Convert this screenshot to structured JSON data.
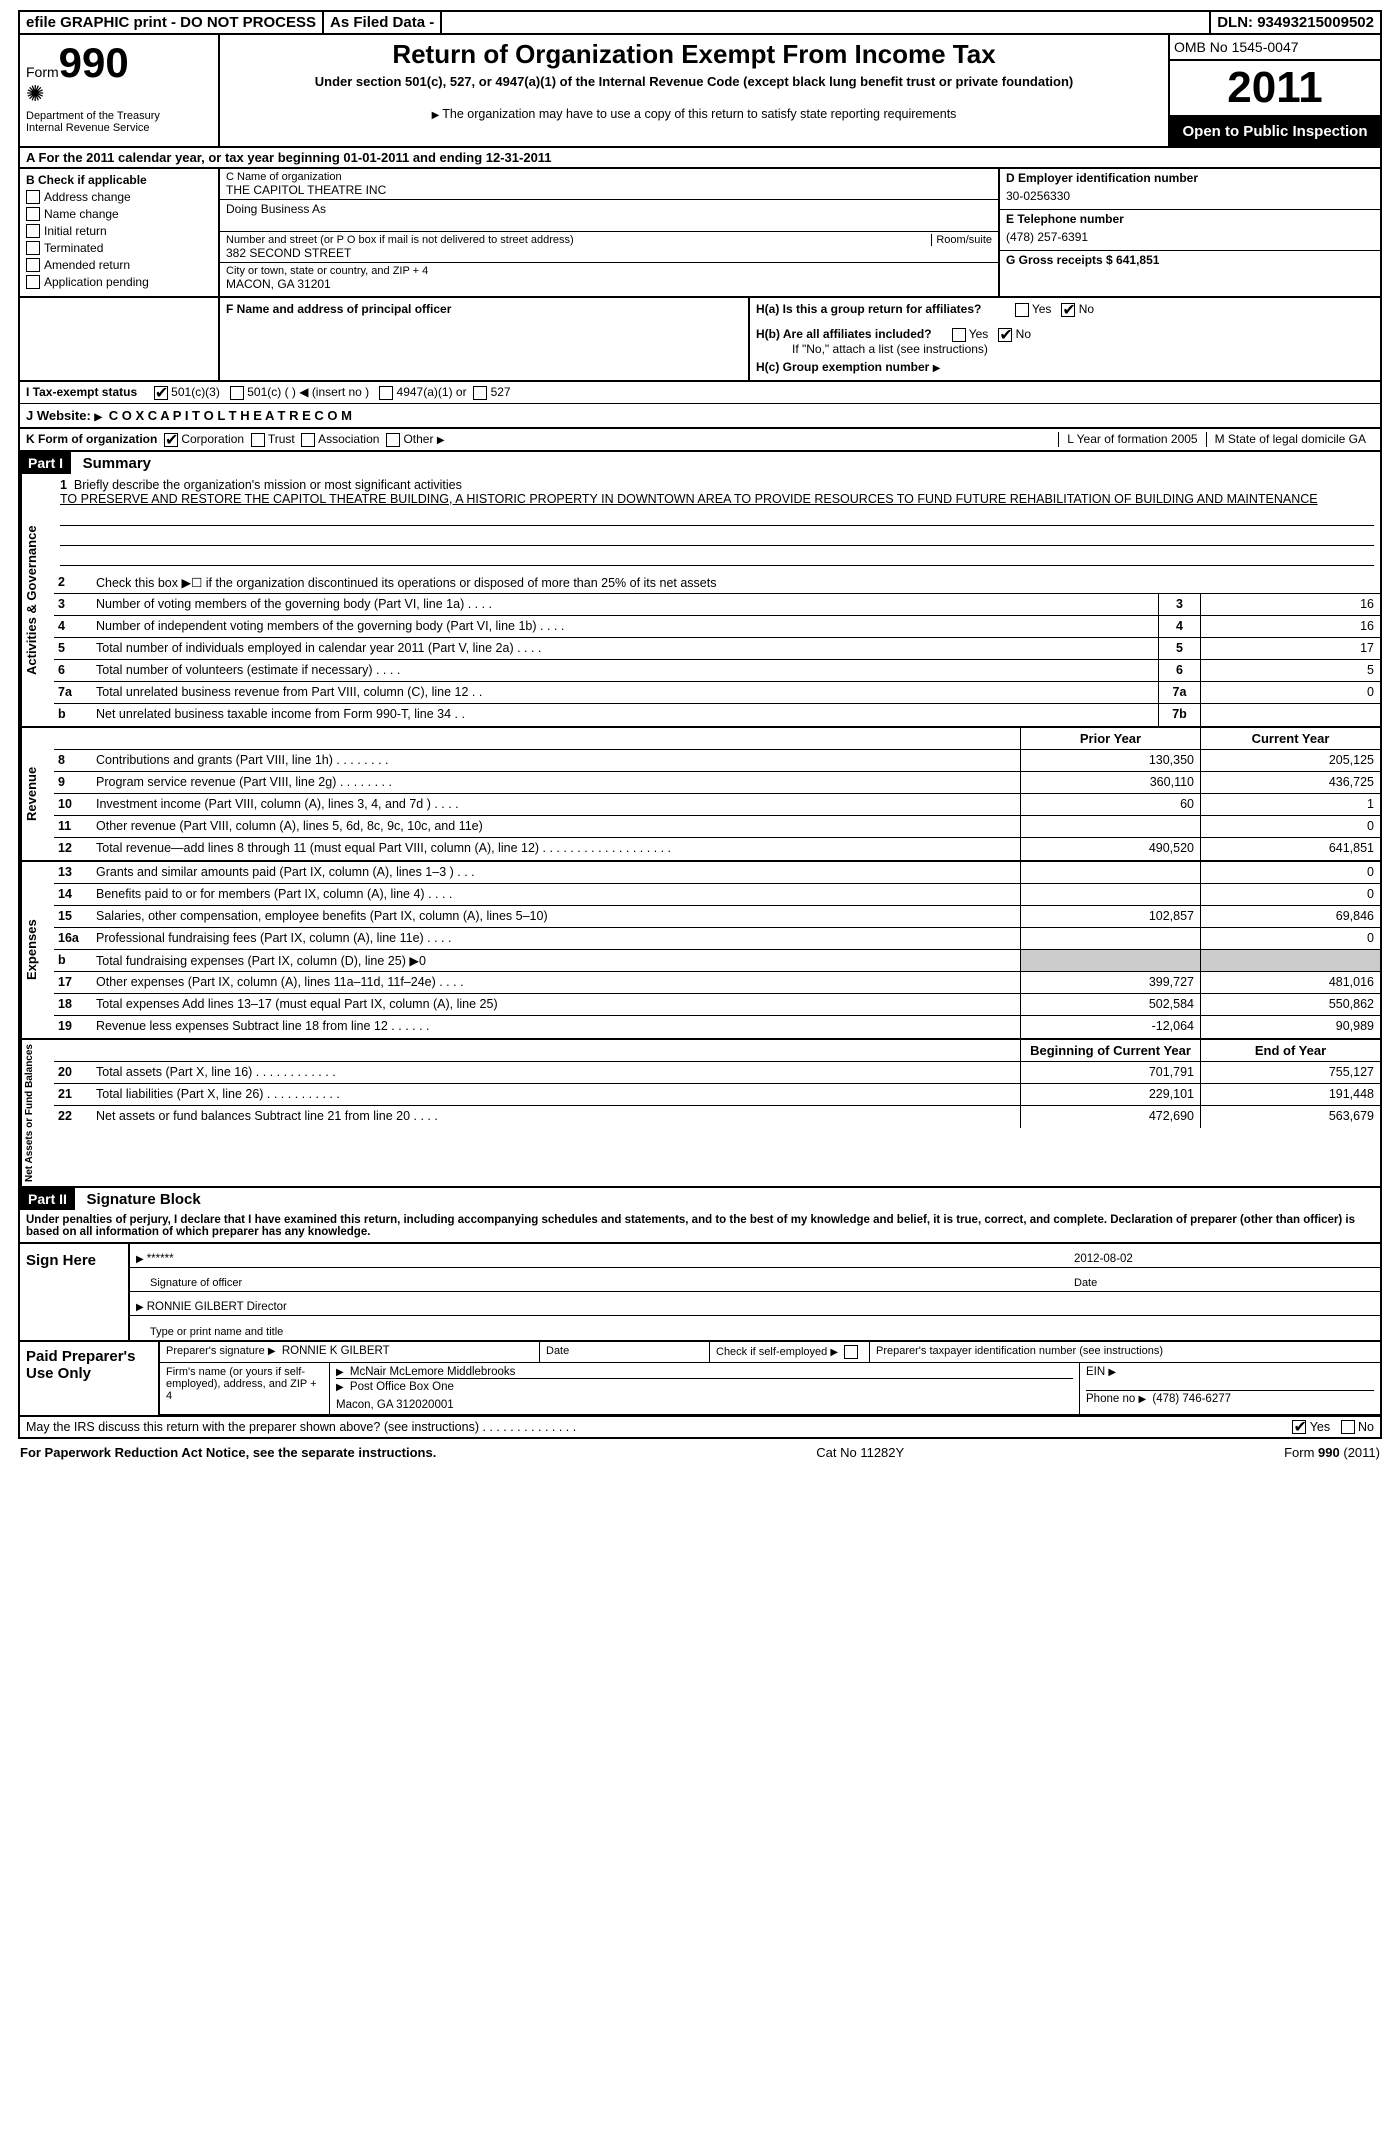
{
  "topbar": {
    "efile": "efile GRAPHIC print - DO NOT PROCESS",
    "asfiled": "As Filed Data -",
    "dln": "DLN: 93493215009502"
  },
  "header": {
    "form_label": "Form",
    "form_no": "990",
    "dept": "Department of the Treasury",
    "irs": "Internal Revenue Service",
    "title": "Return of Organization Exempt From Income Tax",
    "subtitle": "Under section 501(c), 527, or 4947(a)(1) of the Internal Revenue Code (except black lung benefit trust or private foundation)",
    "note": "The organization may have to use a copy of this return to satisfy state reporting requirements",
    "omb": "OMB No 1545-0047",
    "year": "2011",
    "open": "Open to Public Inspection"
  },
  "rowA": "A  For the 2011 calendar year, or tax year beginning 01-01-2011    and ending 12-31-2011",
  "colB": {
    "hdr": "B Check if applicable",
    "items": [
      "Address change",
      "Name change",
      "Initial return",
      "Terminated",
      "Amended return",
      "Application pending"
    ]
  },
  "colC": {
    "name_lbl": "C Name of organization",
    "name": "THE CAPITOL THEATRE INC",
    "dba_lbl": "Doing Business As",
    "street_lbl": "Number and street (or P O  box if mail is not delivered to street address)",
    "room_lbl": "Room/suite",
    "street": "382 SECOND STREET",
    "city_lbl": "City or town, state or country, and ZIP + 4",
    "city": "MACON, GA  31201",
    "f_lbl": "F   Name and address of principal officer"
  },
  "colD": {
    "d_lbl": "D Employer identification number",
    "d_val": "30-0256330",
    "e_lbl": "E Telephone number",
    "e_val": "(478) 257-6391",
    "g_lbl": "G Gross receipts $ 641,851"
  },
  "H": {
    "a": "H(a)  Is this a group return for affiliates?",
    "b": "H(b)  Are all affiliates included?",
    "b2": "If \"No,\" attach a list  (see instructions)",
    "c": "H(c)   Group exemption number",
    "yes": "Yes",
    "no": "No"
  },
  "rowI": {
    "lbl": "I   Tax-exempt status",
    "o1": "501(c)(3)",
    "o2": "501(c) (  )",
    "ins": "(insert no )",
    "o3": "4947(a)(1) or",
    "o4": "527"
  },
  "rowJ": {
    "lbl": "J   Website:",
    "val": "C O X C A P I T O L T H E A T R E  C O M"
  },
  "rowK": {
    "lbl": "K Form of organization",
    "o1": "Corporation",
    "o2": "Trust",
    "o3": "Association",
    "o4": "Other",
    "L": "L Year of formation  2005",
    "M": "M State of legal domicile  GA"
  },
  "part1": {
    "hdr": "Part I",
    "title": "Summary"
  },
  "gov": {
    "label": "Activities & Governance",
    "l1_lbl": "Briefly describe the organization's mission or most significant activities",
    "l1_txt": "TO PRESERVE AND RESTORE THE CAPITOL THEATRE BUILDING, A HISTORIC PROPERTY IN DOWNTOWN AREA  TO PROVIDE RESOURCES TO FUND FUTURE REHABILITATION OF BUILDING AND MAINTENANCE",
    "l2": "Check this box ▶☐ if the organization discontinued its operations or disposed of more than 25% of its net assets",
    "lines": [
      {
        "n": "3",
        "t": "Number of voting members of the governing body (Part VI, line 1a)  .  .  .  .",
        "b": "3",
        "v": "16"
      },
      {
        "n": "4",
        "t": "Number of independent voting members of the governing body (Part VI, line 1b)  .  .  .  .",
        "b": "4",
        "v": "16"
      },
      {
        "n": "5",
        "t": "Total number of individuals employed in calendar year 2011 (Part V, line 2a)  .  .  .  .",
        "b": "5",
        "v": "17"
      },
      {
        "n": "6",
        "t": "Total number of volunteers (estimate if necessary)  .  .  .  .",
        "b": "6",
        "v": "5"
      },
      {
        "n": "7a",
        "t": "Total unrelated business revenue from Part VIII, column (C), line 12  .  .",
        "b": "7a",
        "v": "0"
      },
      {
        "n": "b",
        "t": "Net unrelated business taxable income from Form 990-T, line 34  .  .",
        "b": "7b",
        "v": ""
      }
    ]
  },
  "rev": {
    "label": "Revenue",
    "hdr_prior": "Prior Year",
    "hdr_curr": "Current Year",
    "lines": [
      {
        "n": "8",
        "t": "Contributions and grants (Part VIII, line 1h)  .  .  .  .  .  .  .  .",
        "p": "130,350",
        "c": "205,125"
      },
      {
        "n": "9",
        "t": "Program service revenue (Part VIII, line 2g)  .  .  .  .  .  .  .  .",
        "p": "360,110",
        "c": "436,725"
      },
      {
        "n": "10",
        "t": "Investment income (Part VIII, column (A), lines 3, 4, and 7d )  .  .  .  .",
        "p": "60",
        "c": "1"
      },
      {
        "n": "11",
        "t": "Other revenue (Part VIII, column (A), lines 5, 6d, 8c, 9c, 10c, and 11e)",
        "p": "",
        "c": "0"
      },
      {
        "n": "12",
        "t": "Total revenue—add lines 8 through 11 (must equal Part VIII, column (A), line 12) .  .  .  .  .  .  .  .  .  .  .  .  .  .  .  .  .  .  .",
        "p": "490,520",
        "c": "641,851"
      }
    ]
  },
  "exp": {
    "label": "Expenses",
    "lines": [
      {
        "n": "13",
        "t": "Grants and similar amounts paid (Part IX, column (A), lines 1–3 )  .  .  .",
        "p": "",
        "c": "0"
      },
      {
        "n": "14",
        "t": "Benefits paid to or for members (Part IX, column (A), line 4)  .  .  .  .",
        "p": "",
        "c": "0"
      },
      {
        "n": "15",
        "t": "Salaries, other compensation, employee benefits (Part IX, column (A), lines 5–10)",
        "p": "102,857",
        "c": "69,846"
      },
      {
        "n": "16a",
        "t": "Professional fundraising fees (Part IX, column (A), line 11e)  .  .  .  .",
        "p": "",
        "c": "0"
      },
      {
        "n": "b",
        "t": "Total fundraising expenses (Part IX, column (D), line 25)  ▶0",
        "p": "shade",
        "c": "shade"
      },
      {
        "n": "17",
        "t": "Other expenses (Part IX, column (A), lines 11a–11d, 11f–24e)  .  .  .  .",
        "p": "399,727",
        "c": "481,016"
      },
      {
        "n": "18",
        "t": "Total expenses  Add lines 13–17 (must equal Part IX, column (A), line 25)",
        "p": "502,584",
        "c": "550,862"
      },
      {
        "n": "19",
        "t": "Revenue less expenses  Subtract line 18 from line 12  .  .  .  .  .  .",
        "p": "-12,064",
        "c": "90,989"
      }
    ]
  },
  "net": {
    "label": "Net Assets or Fund Balances",
    "hdr_beg": "Beginning of Current Year",
    "hdr_end": "End of Year",
    "lines": [
      {
        "n": "20",
        "t": "Total assets (Part X, line 16)  .  .  .  .  .  .  .  .  .  .  .  .",
        "p": "701,791",
        "c": "755,127"
      },
      {
        "n": "21",
        "t": "Total liabilities (Part X, line 26)  .  .  .  .  .  .  .  .  .  .  .",
        "p": "229,101",
        "c": "191,448"
      },
      {
        "n": "22",
        "t": "Net assets or fund balances  Subtract line 21 from line 20  .  .  .  .",
        "p": "472,690",
        "c": "563,679"
      }
    ]
  },
  "part2": {
    "hdr": "Part II",
    "title": "Signature Block"
  },
  "sig": {
    "perjury": "Under penalties of perjury, I declare that I have examined this return, including accompanying schedules and statements, and to the best of my knowledge and belief, it is true, correct, and complete. Declaration of preparer (other than officer) is based on all information of which preparer has any knowledge.",
    "signhere": "Sign Here",
    "stars": "******",
    "date": "2012-08-02",
    "sig_lbl": "Signature of officer",
    "date_lbl": "Date",
    "name": "RONNIE GILBERT Director",
    "name_lbl": "Type or print name and title",
    "paid": "Paid Preparer's Use Only",
    "prep_sig_lbl": "Preparer's signature",
    "prep_name": "RONNIE K GILBERT",
    "date2_lbl": "Date",
    "self_lbl": "Check if self-employed",
    "ptin_lbl": "Preparer's taxpayer identification number (see instructions)",
    "firm_lbl": "Firm's name (or yours if self-employed), address, and ZIP + 4",
    "firm": "McNair McLemore Middlebrooks",
    "firm2": "Post Office Box One",
    "firm3": "Macon, GA  312020001",
    "ein_lbl": "EIN",
    "phone_lbl": "Phone no",
    "phone": "(478) 746-6277",
    "discuss": "May the IRS discuss this return with the preparer shown above? (see instructions)  .  .  .  .  .  .  .  .  .  .  .  .  .  ."
  },
  "footer": {
    "left": "For Paperwork Reduction Act Notice, see the separate instructions.",
    "mid": "Cat No  11282Y",
    "right": "Form 990 (2011)"
  }
}
